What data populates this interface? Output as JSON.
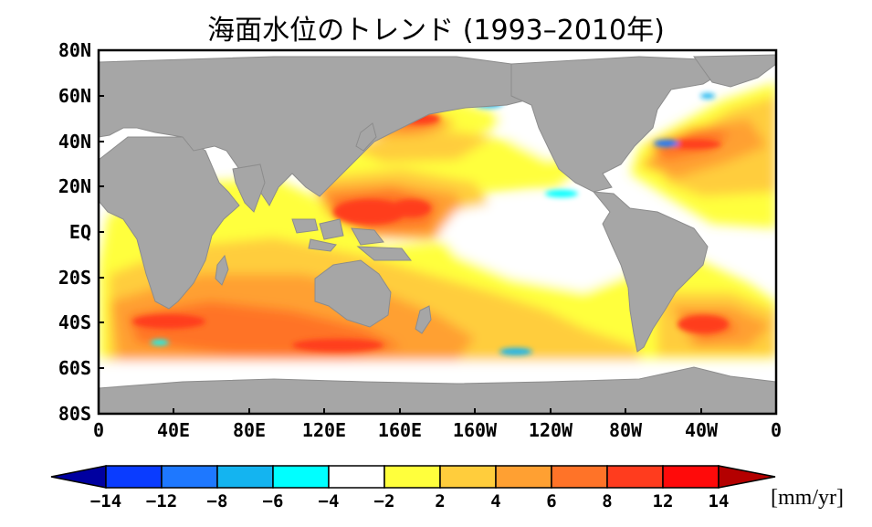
{
  "title": "海面水位のトレンド (1993–2010年)",
  "map": {
    "projection": "equirectangular",
    "lat_range": [
      -80,
      80
    ],
    "lon_range": [
      0,
      360
    ],
    "lat_ticks": [
      "80N",
      "60N",
      "40N",
      "20N",
      "EQ",
      "20S",
      "40S",
      "60S",
      "80S"
    ],
    "lon_ticks": [
      "0",
      "40E",
      "80E",
      "120E",
      "160E",
      "160W",
      "120W",
      "80W",
      "40W",
      "0"
    ],
    "land_color": "#a6a6a6",
    "ocean_no_data": "#ffffff"
  },
  "colorbar": {
    "ticks": [
      "−14",
      "−12",
      "−8",
      "−6",
      "−4",
      "−2",
      "2",
      "4",
      "6",
      "8",
      "12",
      "14"
    ],
    "unit": "[mm/yr]",
    "colors": [
      "#0000c8",
      "#0a3cff",
      "#1e78ff",
      "#14b4f0",
      "#00ffff",
      "#ffffff",
      "#ffff3c",
      "#ffcd3c",
      "#ffa032",
      "#ff7328",
      "#ff3c1e",
      "#ff0a0a",
      "#b40000"
    ],
    "low_end_color": "#0000a0",
    "high_end_color": "#b40000"
  }
}
